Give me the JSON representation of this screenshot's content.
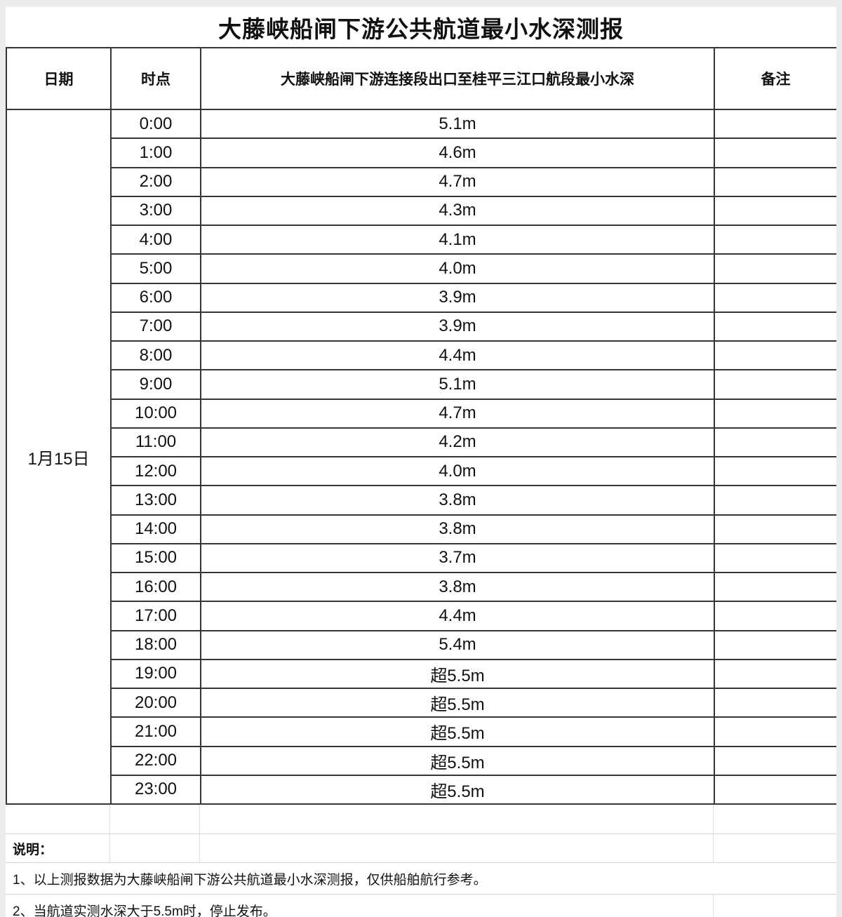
{
  "page": {
    "title": "大藤峡船闸下游公共航道最小水深测报"
  },
  "table": {
    "headers": {
      "date": "日期",
      "time": "时点",
      "depth": "大藤峡船闸下游连接段出口至桂平三江口航段最小水深",
      "remark": "备注"
    },
    "date_span_label": "1月15日",
    "rows": [
      {
        "time": "0:00",
        "depth": "5.1m",
        "remark": ""
      },
      {
        "time": "1:00",
        "depth": "4.6m",
        "remark": ""
      },
      {
        "time": "2:00",
        "depth": "4.7m",
        "remark": ""
      },
      {
        "time": "3:00",
        "depth": "4.3m",
        "remark": ""
      },
      {
        "time": "4:00",
        "depth": "4.1m",
        "remark": ""
      },
      {
        "time": "5:00",
        "depth": "4.0m",
        "remark": ""
      },
      {
        "time": "6:00",
        "depth": "3.9m",
        "remark": ""
      },
      {
        "time": "7:00",
        "depth": "3.9m",
        "remark": ""
      },
      {
        "time": "8:00",
        "depth": "4.4m",
        "remark": ""
      },
      {
        "time": "9:00",
        "depth": "5.1m",
        "remark": ""
      },
      {
        "time": "10:00",
        "depth": "4.7m",
        "remark": ""
      },
      {
        "time": "11:00",
        "depth": "4.2m",
        "remark": ""
      },
      {
        "time": "12:00",
        "depth": "4.0m",
        "remark": ""
      },
      {
        "time": "13:00",
        "depth": "3.8m",
        "remark": ""
      },
      {
        "time": "14:00",
        "depth": "3.8m",
        "remark": ""
      },
      {
        "time": "15:00",
        "depth": "3.7m",
        "remark": ""
      },
      {
        "time": "16:00",
        "depth": "3.8m",
        "remark": ""
      },
      {
        "time": "17:00",
        "depth": "4.4m",
        "remark": ""
      },
      {
        "time": "18:00",
        "depth": "5.4m",
        "remark": ""
      },
      {
        "time": "19:00",
        "depth": "超5.5m",
        "remark": ""
      },
      {
        "time": "20:00",
        "depth": "超5.5m",
        "remark": ""
      },
      {
        "time": "21:00",
        "depth": "超5.5m",
        "remark": ""
      },
      {
        "time": "22:00",
        "depth": "超5.5m",
        "remark": ""
      },
      {
        "time": "23:00",
        "depth": "超5.5m",
        "remark": ""
      }
    ]
  },
  "notes": {
    "heading": "说明：",
    "items": [
      "1、以上测报数据为大藤峡船闸下游公共航道最小水深测报，仅供船舶航行参考。",
      "2、当航道实测水深大于5.5m时，停止发布。"
    ]
  },
  "colors": {
    "border_dark": "#363636",
    "grid_light": "#e0e0e0",
    "page_margin_bg": "#ececec",
    "text": "#111111"
  }
}
